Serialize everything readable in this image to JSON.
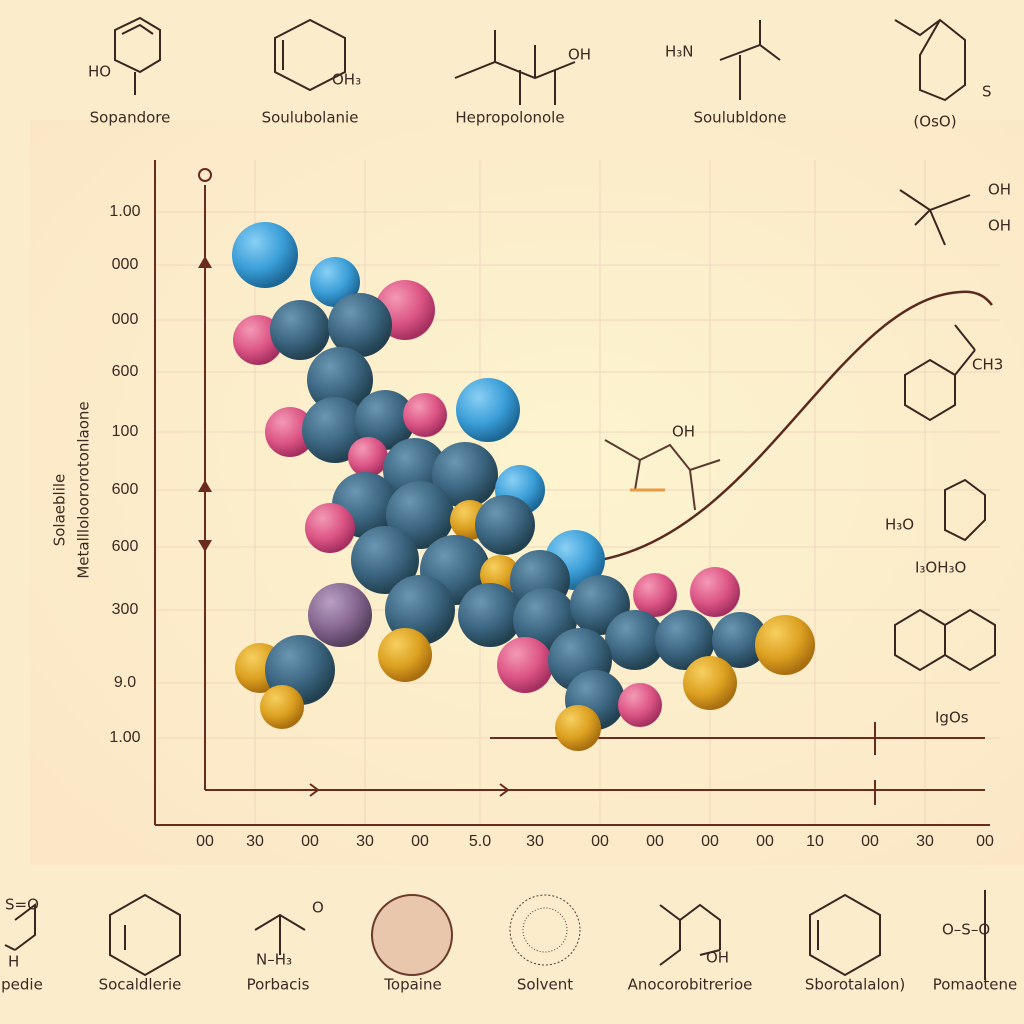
{
  "top_labels": [
    "Sopandore",
    "Soulubolanie",
    "Hepropolonole",
    "Soulubldone",
    "(OsO)"
  ],
  "bottom_labels": [
    "pedie",
    "Socaldlerie",
    "Porbacis",
    "Topaine",
    "Solvent",
    "Anocorobitrerioe",
    "Sborotalalon)",
    "Pomaotene"
  ],
  "y_axis_title": [
    "Solaeblile",
    "Metallloloororotonlaone"
  ],
  "y_labels": [
    "1.00",
    "000",
    "000",
    "600",
    "100",
    "600",
    "600",
    "300",
    "9.0",
    "1.00"
  ],
  "x_labels": [
    "00",
    "30",
    "00",
    "30",
    "00",
    "5.0",
    "30",
    "00",
    "00",
    "00",
    "00",
    "10",
    "00",
    "30",
    "00"
  ],
  "annotations": [
    "HO",
    "OH₃",
    "OH",
    "H₃N",
    "S",
    "OH",
    "OH",
    "CH3",
    "OH",
    "H₃O",
    "I₃OH₃O",
    "IgOs",
    "S=O",
    "H",
    "N–H₃",
    "O",
    "OH",
    "O–S–O"
  ]
}
